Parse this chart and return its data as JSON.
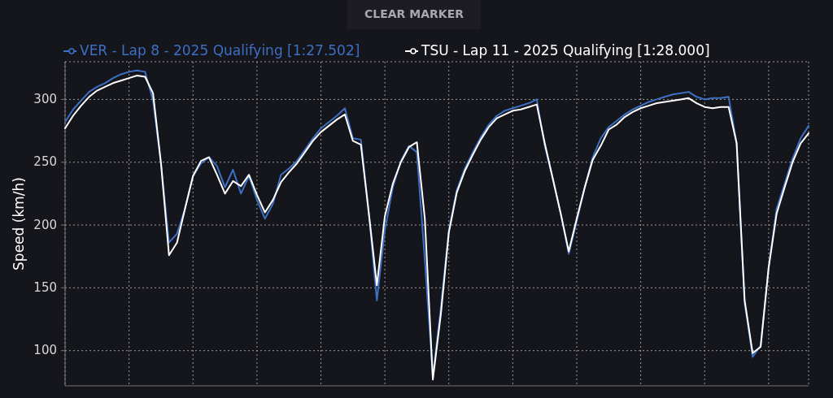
{
  "chart_data": {
    "type": "line",
    "ylabel": "Speed (km/h)",
    "annotations": [
      "CLEAR MARKER"
    ],
    "categories": [
      null,
      null,
      null,
      null,
      null,
      null,
      null,
      null,
      null,
      null,
      null,
      null,
      null,
      null,
      null,
      null,
      null,
      null,
      null,
      null,
      null,
      null,
      null,
      null,
      null,
      null,
      null,
      null,
      null,
      null,
      null,
      null,
      null,
      null,
      null,
      null,
      null,
      null,
      null,
      null,
      null,
      null,
      null,
      null,
      null,
      null,
      null,
      null,
      null,
      null,
      null,
      null,
      null,
      null,
      null,
      null,
      null,
      null,
      null,
      null,
      null,
      null,
      null,
      null,
      null,
      null,
      null,
      null,
      null,
      null,
      null,
      null,
      null,
      null,
      null,
      null,
      null,
      null,
      null,
      null,
      null,
      null,
      null,
      null,
      null,
      null,
      null,
      null,
      null,
      null,
      null,
      null,
      null,
      null
    ],
    "series": [
      {
        "name": "VER - Lap 8 - 2025 Qualifying [1:27.502]",
        "color": "#3d6fc4",
        "values": [
          282,
          292,
          299,
          306,
          310,
          313,
          317,
          320,
          322,
          323,
          322,
          299,
          249,
          186,
          193,
          213,
          239,
          249,
          254,
          247,
          230,
          244,
          225,
          239,
          220,
          205,
          217,
          240,
          245,
          251,
          260,
          269,
          277,
          282,
          287,
          293,
          269,
          268,
          209,
          140,
          196,
          230,
          251,
          263,
          258,
          172,
          80,
          134,
          196,
          228,
          245,
          258,
          270,
          280,
          287,
          291,
          293,
          295,
          297,
          300,
          263,
          237,
          209,
          177,
          203,
          230,
          254,
          269,
          278,
          283,
          288,
          292,
          295,
          298,
          300,
          302,
          304,
          305,
          306,
          302,
          300,
          301,
          301,
          302,
          265,
          138,
          95,
          104,
          166,
          213,
          233,
          253,
          269,
          279
        ]
      },
      {
        "name": "TSU - Lap 11 - 2025 Qualifying [1:28.000]",
        "color": "#ffffff",
        "values": [
          277,
          287,
          295,
          302,
          307,
          310,
          313,
          315,
          317,
          319,
          318,
          305,
          249,
          176,
          186,
          213,
          239,
          251,
          254,
          240,
          225,
          235,
          231,
          240,
          224,
          210,
          220,
          234,
          242,
          249,
          258,
          267,
          274,
          279,
          284,
          288,
          267,
          264,
          209,
          152,
          207,
          233,
          250,
          262,
          266,
          205,
          77,
          129,
          194,
          226,
          243,
          256,
          268,
          278,
          285,
          288,
          291,
          292,
          294,
          296,
          265,
          237,
          209,
          179,
          205,
          230,
          252,
          263,
          276,
          280,
          286,
          290,
          293,
          295,
          297,
          298,
          299,
          300,
          301,
          297,
          294,
          293,
          294,
          294,
          265,
          140,
          98,
          103,
          166,
          209,
          230,
          250,
          265,
          273
        ]
      }
    ],
    "ylim": [
      72,
      330
    ],
    "yticks": [
      100,
      150,
      200,
      250,
      300
    ],
    "grid": true,
    "legend": "top"
  }
}
